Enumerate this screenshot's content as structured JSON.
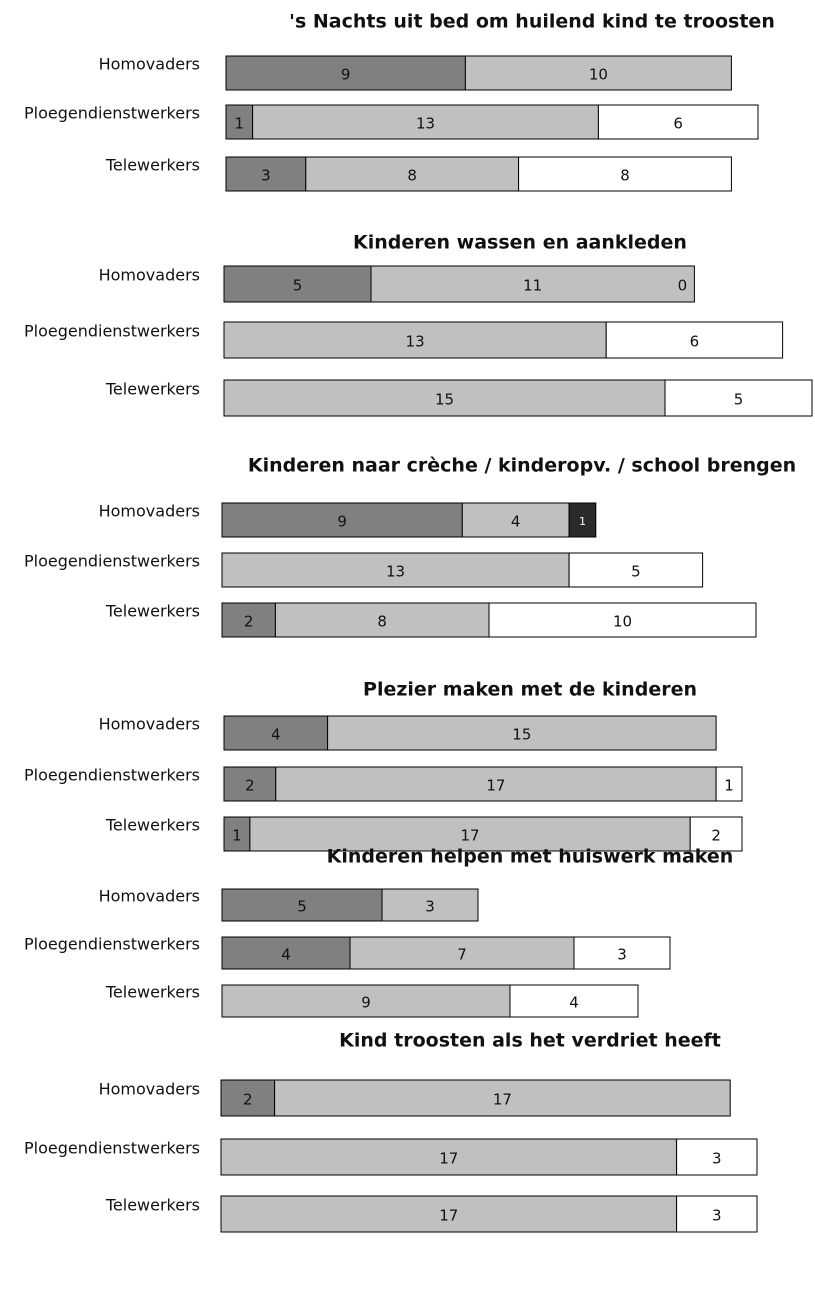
{
  "chart_data": [
    {
      "type": "bar",
      "orientation": "horizontal",
      "stacked": true,
      "title": "'s Nachts uit bed om huilend kind te troosten",
      "categories": [
        "Homovaders",
        "Ploegendienstwerkers",
        "Telewerkers"
      ],
      "series": [
        {
          "color": "#808080",
          "values": [
            9,
            1,
            3
          ]
        },
        {
          "color": "#c0c0c0",
          "values": [
            10,
            13,
            8
          ]
        },
        {
          "color": "#ffffff",
          "values": [
            null,
            6,
            8
          ]
        }
      ]
    },
    {
      "type": "bar",
      "orientation": "horizontal",
      "stacked": true,
      "title": "Kinderen wassen en aankleden",
      "categories": [
        "Homovaders",
        "Ploegendienstwerkers",
        "Telewerkers"
      ],
      "series": [
        {
          "color": "#808080",
          "values": [
            5,
            0,
            0
          ]
        },
        {
          "color": "#c0c0c0",
          "values": [
            11,
            13,
            15
          ]
        },
        {
          "color": "#ffffff",
          "values": [
            0,
            6,
            5
          ]
        }
      ]
    },
    {
      "type": "bar",
      "orientation": "horizontal",
      "stacked": true,
      "title": "Kinderen naar crèche / kinderopv. / school brengen",
      "categories": [
        "Homovaders",
        "Ploegendienstwerkers",
        "Telewerkers"
      ],
      "series": [
        {
          "color": "#808080",
          "values": [
            9,
            null,
            2
          ]
        },
        {
          "color": "#c0c0c0",
          "values": [
            4,
            13,
            8
          ]
        },
        {
          "color": "#ffffff",
          "values": [
            null,
            5,
            10
          ]
        },
        {
          "color": "#2b2b2b",
          "values": [
            1,
            null,
            null
          ]
        }
      ]
    },
    {
      "type": "bar",
      "orientation": "horizontal",
      "stacked": true,
      "title": "Plezier maken met de kinderen",
      "categories": [
        "Homovaders",
        "Ploegendienstwerkers",
        "Telewerkers"
      ],
      "series": [
        {
          "color": "#808080",
          "values": [
            4,
            2,
            1
          ]
        },
        {
          "color": "#c0c0c0",
          "values": [
            15,
            17,
            17
          ]
        },
        {
          "color": "#ffffff",
          "values": [
            null,
            1,
            2
          ]
        }
      ]
    },
    {
      "type": "bar",
      "orientation": "horizontal",
      "stacked": true,
      "title": "Kinderen helpen met huiswerk maken",
      "categories": [
        "Homovaders",
        "Ploegendienstwerkers",
        "Telewerkers"
      ],
      "series": [
        {
          "color": "#808080",
          "values": [
            5,
            4,
            null
          ]
        },
        {
          "color": "#c0c0c0",
          "values": [
            3,
            7,
            9
          ]
        },
        {
          "color": "#ffffff",
          "values": [
            null,
            3,
            4
          ]
        }
      ]
    },
    {
      "type": "bar",
      "orientation": "horizontal",
      "stacked": true,
      "title": "Kind troosten als het verdriet heeft",
      "categories": [
        "Homovaders",
        "Ploegendienstwerkers",
        "Telewerkers"
      ],
      "series": [
        {
          "color": "#808080",
          "values": [
            2,
            0,
            0
          ]
        },
        {
          "color": "#c0c0c0",
          "values": [
            17,
            17,
            17
          ]
        },
        {
          "color": "#ffffff",
          "values": [
            null,
            3,
            3
          ]
        }
      ]
    }
  ]
}
